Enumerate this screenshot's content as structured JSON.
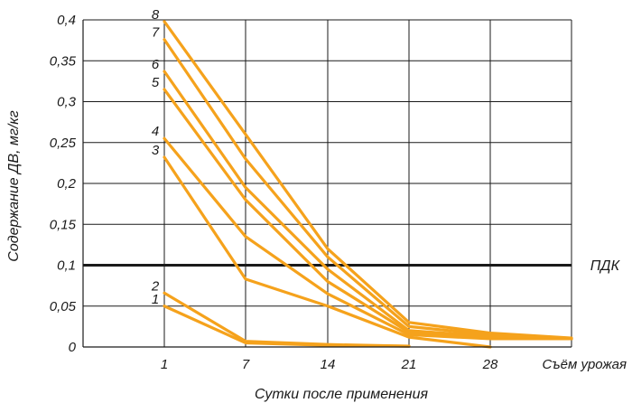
{
  "chart_data": {
    "type": "line",
    "title": "",
    "xlabel": "Сутки после применения",
    "ylabel": "Содержание ДВ, мг/кг",
    "categories": [
      "1",
      "7",
      "14",
      "21",
      "28",
      "Съём урожая"
    ],
    "y_ticks": [
      "0",
      "0,05",
      "0,1",
      "0,15",
      "0,2",
      "0,25",
      "0,3",
      "0,35",
      "0,4"
    ],
    "ylim": [
      0,
      0.4
    ],
    "grid": true,
    "series_color": "#f5a21c",
    "reference_line": {
      "label": "ПДК",
      "value": 0.1,
      "color": "#1a1a1a"
    },
    "series": [
      {
        "name": "1",
        "values": [
          0.05,
          0.005,
          0.002,
          0.001,
          null,
          null
        ]
      },
      {
        "name": "2",
        "values": [
          0.066,
          0.007,
          0.003,
          0.001,
          null,
          null
        ]
      },
      {
        "name": "3",
        "values": [
          0.232,
          0.083,
          0.05,
          0.012,
          0.0,
          null
        ]
      },
      {
        "name": "4",
        "values": [
          0.255,
          0.135,
          0.065,
          0.015,
          0.01,
          0.01
        ]
      },
      {
        "name": "5",
        "values": [
          0.315,
          0.18,
          0.08,
          0.018,
          0.012,
          0.01
        ]
      },
      {
        "name": "6",
        "values": [
          0.337,
          0.195,
          0.095,
          0.02,
          0.013,
          0.01
        ]
      },
      {
        "name": "7",
        "values": [
          0.376,
          0.23,
          0.11,
          0.025,
          0.015,
          0.01
        ]
      },
      {
        "name": "8",
        "values": [
          0.398,
          0.26,
          0.12,
          0.03,
          0.017,
          0.011
        ]
      }
    ]
  }
}
